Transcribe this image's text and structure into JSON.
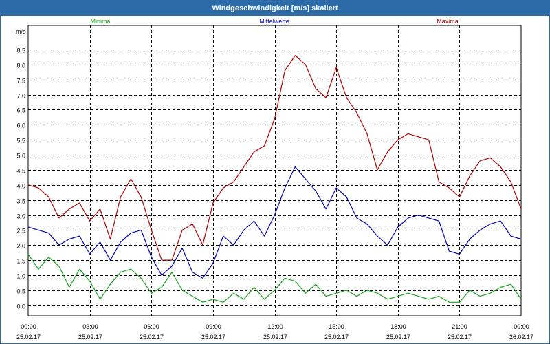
{
  "window": {
    "title": "Windgeschwindigkeit [m/s] skaliert"
  },
  "colors": {
    "titlebar": "#2c6aa8",
    "minima": "#1aa31a",
    "mittel": "#0000b4",
    "maxima": "#b00000",
    "grid": "#000000"
  },
  "chart_data": {
    "type": "line",
    "title": "Windgeschwindigkeit [m/s] skaliert",
    "ylabel": "m/s",
    "ylim": [
      -0.35,
      9.3
    ],
    "xlim": [
      0,
      24
    ],
    "grid": true,
    "legend": "top",
    "y_ticks": [
      "0,0",
      "0,5",
      "1,0",
      "1,5",
      "2,0",
      "2,5",
      "3,0",
      "3,5",
      "4,0",
      "4,5",
      "5,0",
      "5,5",
      "6,0",
      "6,5",
      "7,0",
      "7,5",
      "8,0",
      "8,5"
    ],
    "x_ticks": [
      {
        "time": "00:00",
        "date": "25.02.17"
      },
      {
        "time": "03:00",
        "date": "25.02.17"
      },
      {
        "time": "06:00",
        "date": "25.02.17"
      },
      {
        "time": "09:00",
        "date": "25.02.17"
      },
      {
        "time": "12:00",
        "date": "25.02.17"
      },
      {
        "time": "15:00",
        "date": "25.02.17"
      },
      {
        "time": "18:00",
        "date": "25.02.17"
      },
      {
        "time": "21:00",
        "date": "25.02.17"
      },
      {
        "time": "00:00",
        "date": "26.02.17"
      }
    ],
    "x_hours": [
      0.0,
      0.5,
      1.0,
      1.5,
      2.0,
      2.5,
      3.0,
      3.5,
      4.0,
      4.5,
      5.0,
      5.5,
      6.0,
      6.5,
      7.0,
      7.5,
      8.0,
      8.5,
      9.0,
      9.5,
      10.0,
      10.5,
      11.0,
      11.5,
      12.0,
      12.5,
      13.0,
      13.5,
      14.0,
      14.5,
      15.0,
      15.5,
      16.0,
      16.5,
      17.0,
      17.5,
      18.0,
      18.5,
      19.0,
      19.5,
      20.0,
      20.5,
      21.0,
      21.5,
      22.0,
      22.5,
      23.0,
      23.5,
      24.0
    ],
    "series": [
      {
        "name": "Minima",
        "color": "#1aa31a",
        "values": [
          1.7,
          1.2,
          1.6,
          1.3,
          0.6,
          1.2,
          0.8,
          0.2,
          0.7,
          1.1,
          1.2,
          0.9,
          0.4,
          0.6,
          1.1,
          0.5,
          0.3,
          0.1,
          0.2,
          0.1,
          0.4,
          0.2,
          0.6,
          0.2,
          0.5,
          0.9,
          0.8,
          0.4,
          0.7,
          0.3,
          0.4,
          0.5,
          0.3,
          0.5,
          0.4,
          0.2,
          0.3,
          0.4,
          0.3,
          0.2,
          0.3,
          0.1,
          0.1,
          0.5,
          0.3,
          0.4,
          0.6,
          0.7,
          0.2
        ]
      },
      {
        "name": "Mittelwerte",
        "color": "#0000b4",
        "values": [
          2.6,
          2.5,
          2.4,
          2.0,
          2.2,
          2.3,
          1.7,
          2.1,
          1.5,
          2.1,
          2.4,
          2.5,
          1.6,
          1.0,
          1.3,
          1.9,
          1.1,
          0.9,
          1.4,
          2.3,
          2.0,
          2.5,
          2.8,
          2.3,
          3.0,
          3.9,
          4.6,
          4.2,
          3.8,
          3.2,
          3.9,
          3.6,
          2.9,
          2.7,
          2.3,
          2.0,
          2.6,
          2.9,
          3.0,
          2.9,
          2.8,
          1.8,
          1.7,
          2.2,
          2.5,
          2.7,
          2.8,
          2.3,
          2.2
        ]
      },
      {
        "name": "Maxima",
        "color": "#b00000",
        "values": [
          4.0,
          3.9,
          3.6,
          2.9,
          3.2,
          3.4,
          2.8,
          3.2,
          2.2,
          3.6,
          4.2,
          3.6,
          2.5,
          1.5,
          1.5,
          2.5,
          2.7,
          2.0,
          3.4,
          3.9,
          4.1,
          4.6,
          5.1,
          5.3,
          6.2,
          7.8,
          8.3,
          8.0,
          7.2,
          6.9,
          7.9,
          6.9,
          6.4,
          5.7,
          4.5,
          5.1,
          5.5,
          5.7,
          5.6,
          5.5,
          4.1,
          3.9,
          3.6,
          4.3,
          4.8,
          4.9,
          4.6,
          4.1,
          3.2
        ]
      }
    ]
  }
}
